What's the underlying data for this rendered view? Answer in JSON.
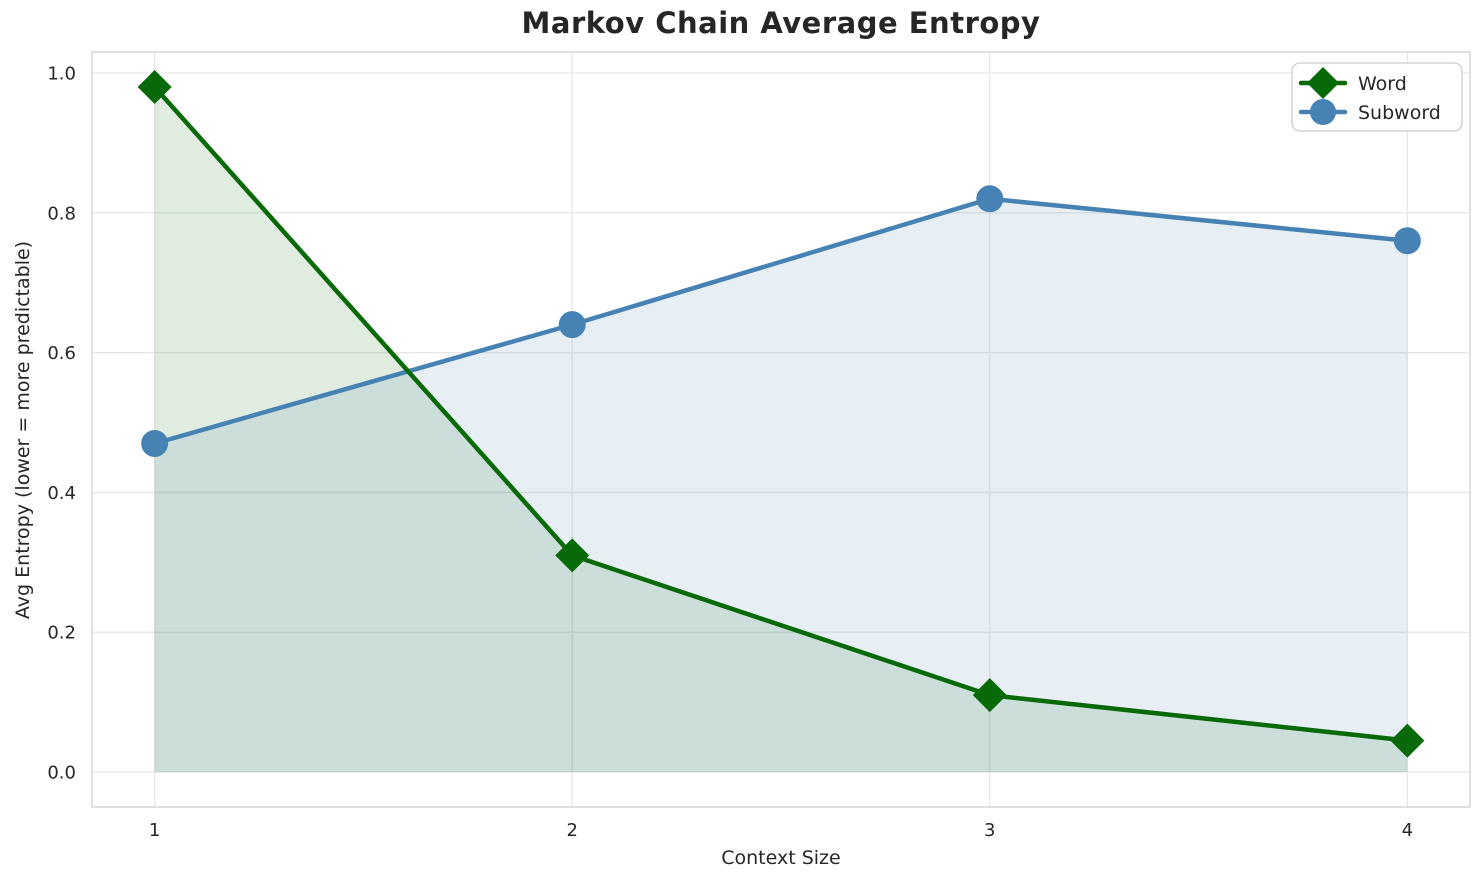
{
  "chart_data": {
    "type": "line",
    "title": "Markov Chain Average Entropy",
    "xlabel": "Context Size",
    "ylabel": "Avg Entropy (lower = more predictable)",
    "x": [
      1,
      2,
      3,
      4
    ],
    "x_tick_labels": [
      "1",
      "2",
      "3",
      "4"
    ],
    "y_ticks": [
      0.0,
      0.2,
      0.4,
      0.6,
      0.8,
      1.0
    ],
    "y_tick_labels": [
      "0.0",
      "0.2",
      "0.4",
      "0.6",
      "0.8",
      "1.0"
    ],
    "xlim": [
      0.85,
      4.15
    ],
    "ylim": [
      -0.05,
      1.03
    ],
    "grid": true,
    "legend": {
      "position": "top-right",
      "entries": [
        "Word",
        "Subword"
      ]
    },
    "series": [
      {
        "name": "Word",
        "color": "#086908",
        "marker": "diamond",
        "values": [
          0.98,
          0.31,
          0.11,
          0.045
        ],
        "fill_to_zero": true,
        "fill_opacity": 0.13
      },
      {
        "name": "Subword",
        "color": "#4682b4",
        "marker": "circle",
        "values": [
          0.47,
          0.64,
          0.82,
          0.76
        ],
        "fill_to_zero": true,
        "fill_opacity": 0.13
      }
    ],
    "styles": {
      "grid_color": "#e7e7e7",
      "spine_color": "#d5d5d5",
      "text_color": "#262626",
      "tick_font_size": 18,
      "legend_font_size": 19,
      "line_width": 4.5
    }
  }
}
